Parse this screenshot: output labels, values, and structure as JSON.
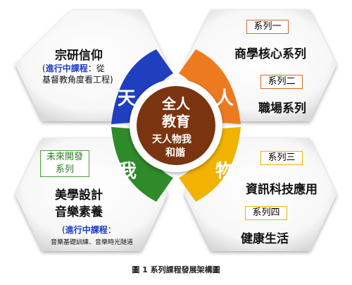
{
  "center": {
    "line1": "全人",
    "line2": "教育",
    "line3": "天人物我",
    "line4": "和諧"
  },
  "petals": {
    "tian": "天",
    "ren": "人",
    "wu": "物",
    "wo": "我"
  },
  "top_left": {
    "title": "宗研信仰",
    "note_open": "(",
    "note_highlight": "進行中課程",
    "note_rest": "：從",
    "note_line2": "基督教角度看工程)"
  },
  "top_right": {
    "label1": "系列一",
    "title1": "商學核心系列",
    "label2": "系列二",
    "title2": "職場系列"
  },
  "bottom_right": {
    "label3": "系列三",
    "title3": "資訊科技應用",
    "label4": "系列四",
    "title4": "健康生活"
  },
  "bottom_left": {
    "label_line1": "未來開發",
    "label_line2": "系列",
    "title1": "美學設計",
    "title2": "音樂素養",
    "note_open": "(",
    "note_highlight": "進行中課程",
    "note_colon": "：",
    "note_line2": "音樂基礎訓練、音樂時光隧道"
  },
  "caption": "圖 1  系列課程發展架構圖",
  "colors": {
    "center_brown": "#7a3410",
    "blue": "#1f3fbf",
    "orange": "#ee7a20",
    "yellow": "#f2b300",
    "green": "#2f8a2a",
    "box_border_orange": "#d96a2b",
    "box_border_green": "#4a9a3a"
  }
}
